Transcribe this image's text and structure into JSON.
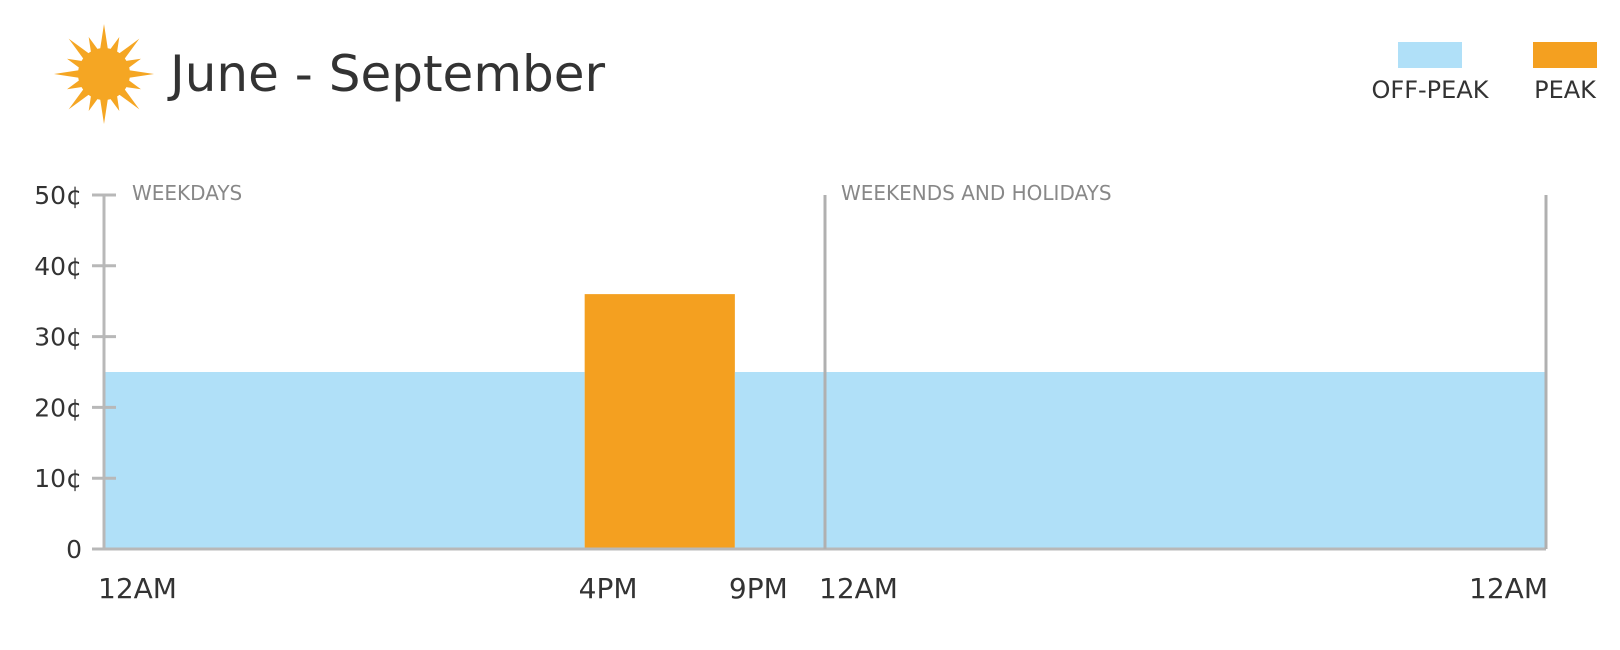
{
  "title": "June - September",
  "icon": "sun-icon",
  "colors": {
    "off_peak": "#b0e0f8",
    "peak": "#f4a020",
    "sun": "#f5a623",
    "axis": "#b8b8b8",
    "divider": "#b0b0b0",
    "text": "#333333",
    "section_label": "#888888"
  },
  "legend": [
    {
      "key": "off_peak",
      "label": "OFF-PEAK"
    },
    {
      "key": "peak",
      "label": "PEAK"
    }
  ],
  "chart_data": {
    "type": "area",
    "title": "June - September",
    "ylim": [
      0,
      50
    ],
    "y_ticks": [
      "0",
      "10¢",
      "20¢",
      "30¢",
      "40¢",
      "50¢"
    ],
    "y_tick_values": [
      0,
      10,
      20,
      30,
      40,
      50
    ],
    "x_ticks": [
      {
        "label": "12AM",
        "hour": 0
      },
      {
        "label": "4PM",
        "hour": 16
      },
      {
        "label": "9PM",
        "hour": 21
      },
      {
        "label": "12AM",
        "hour": 24
      },
      {
        "label": "12AM",
        "hour": 48
      }
    ],
    "x_range_hours": [
      0,
      48
    ],
    "sections": [
      {
        "label": "WEEKDAYS",
        "start_hour": 0,
        "end_hour": 24
      },
      {
        "label": "WEEKENDS AND HOLIDAYS",
        "start_hour": 24,
        "end_hour": 48
      }
    ],
    "segments": [
      {
        "series": "off_peak",
        "start_hour": 0,
        "end_hour": 16,
        "value": 25
      },
      {
        "series": "peak",
        "start_hour": 16,
        "end_hour": 21,
        "value": 36
      },
      {
        "series": "off_peak",
        "start_hour": 21,
        "end_hour": 24,
        "value": 25
      },
      {
        "series": "off_peak",
        "start_hour": 24,
        "end_hour": 48,
        "value": 25
      }
    ],
    "series": [
      {
        "name": "OFF-PEAK",
        "key": "off_peak"
      },
      {
        "name": "PEAK",
        "key": "peak"
      }
    ],
    "grid": false,
    "legend_position": "top-right"
  }
}
